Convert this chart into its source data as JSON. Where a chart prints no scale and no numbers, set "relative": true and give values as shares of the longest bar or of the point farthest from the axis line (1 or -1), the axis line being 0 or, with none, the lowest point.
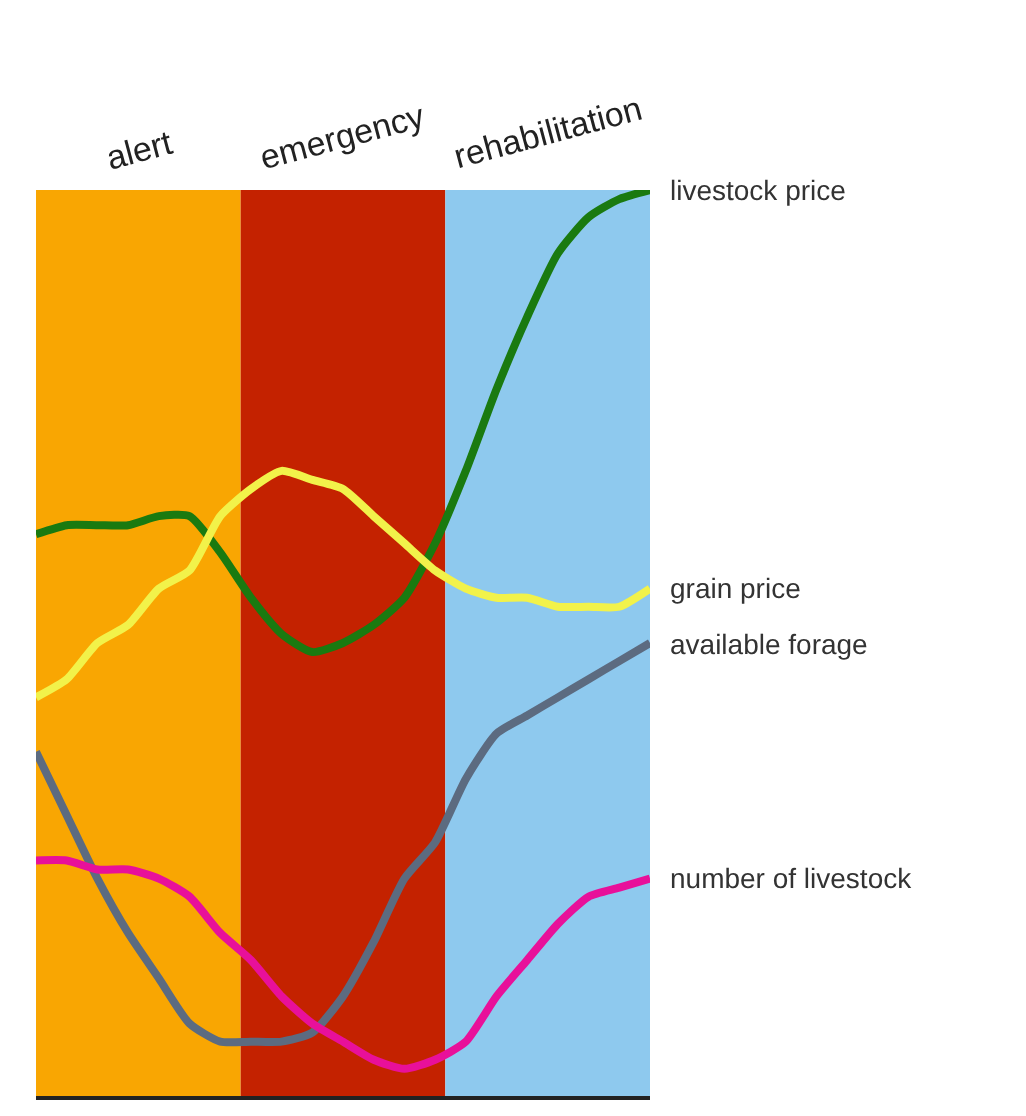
{
  "chart_data": {
    "type": "line",
    "relative": true,
    "categories": [
      null,
      null,
      null,
      null,
      null,
      null,
      null,
      null,
      null,
      null,
      null,
      null,
      null,
      null,
      null,
      null,
      null,
      null,
      null,
      null,
      null
    ],
    "series": [
      {
        "name": "livestock price",
        "color": "#1a7a10",
        "values": [
          0.62,
          0.63,
          0.63,
          0.63,
          0.64,
          0.64,
          0.6,
          0.55,
          0.51,
          0.49,
          0.5,
          0.52,
          0.55,
          0.61,
          0.69,
          0.78,
          0.86,
          0.93,
          0.97,
          0.99,
          1
        ]
      },
      {
        "name": "grain price",
        "color": "#f2f24a",
        "values": [
          0.44,
          0.46,
          0.5,
          0.52,
          0.56,
          0.58,
          0.64,
          0.67,
          0.69,
          0.68,
          0.67,
          0.64,
          0.61,
          0.58,
          0.56,
          0.55,
          0.55,
          0.54,
          0.54,
          0.54,
          0.56
        ]
      },
      {
        "name": "available forage",
        "color": "#5c6b80",
        "values": [
          0.38,
          0.31,
          0.24,
          0.18,
          0.13,
          0.08,
          0.06,
          0.06,
          0.06,
          0.07,
          0.11,
          0.17,
          0.24,
          0.28,
          0.35,
          0.4,
          0.42,
          0.44,
          0.46,
          0.48,
          0.5
        ]
      },
      {
        "name": "number of livestock",
        "color": "#e8109a",
        "values": [
          0.26,
          0.26,
          0.25,
          0.25,
          0.24,
          0.22,
          0.18,
          0.15,
          0.11,
          0.08,
          0.06,
          0.04,
          0.03,
          0.04,
          0.06,
          0.11,
          0.15,
          0.19,
          0.22,
          0.23,
          0.24
        ]
      }
    ],
    "annotations": [
      "alert",
      "emergency",
      "rehabilitation"
    ],
    "legend": false,
    "marker": "none",
    "line_style": "solid"
  }
}
